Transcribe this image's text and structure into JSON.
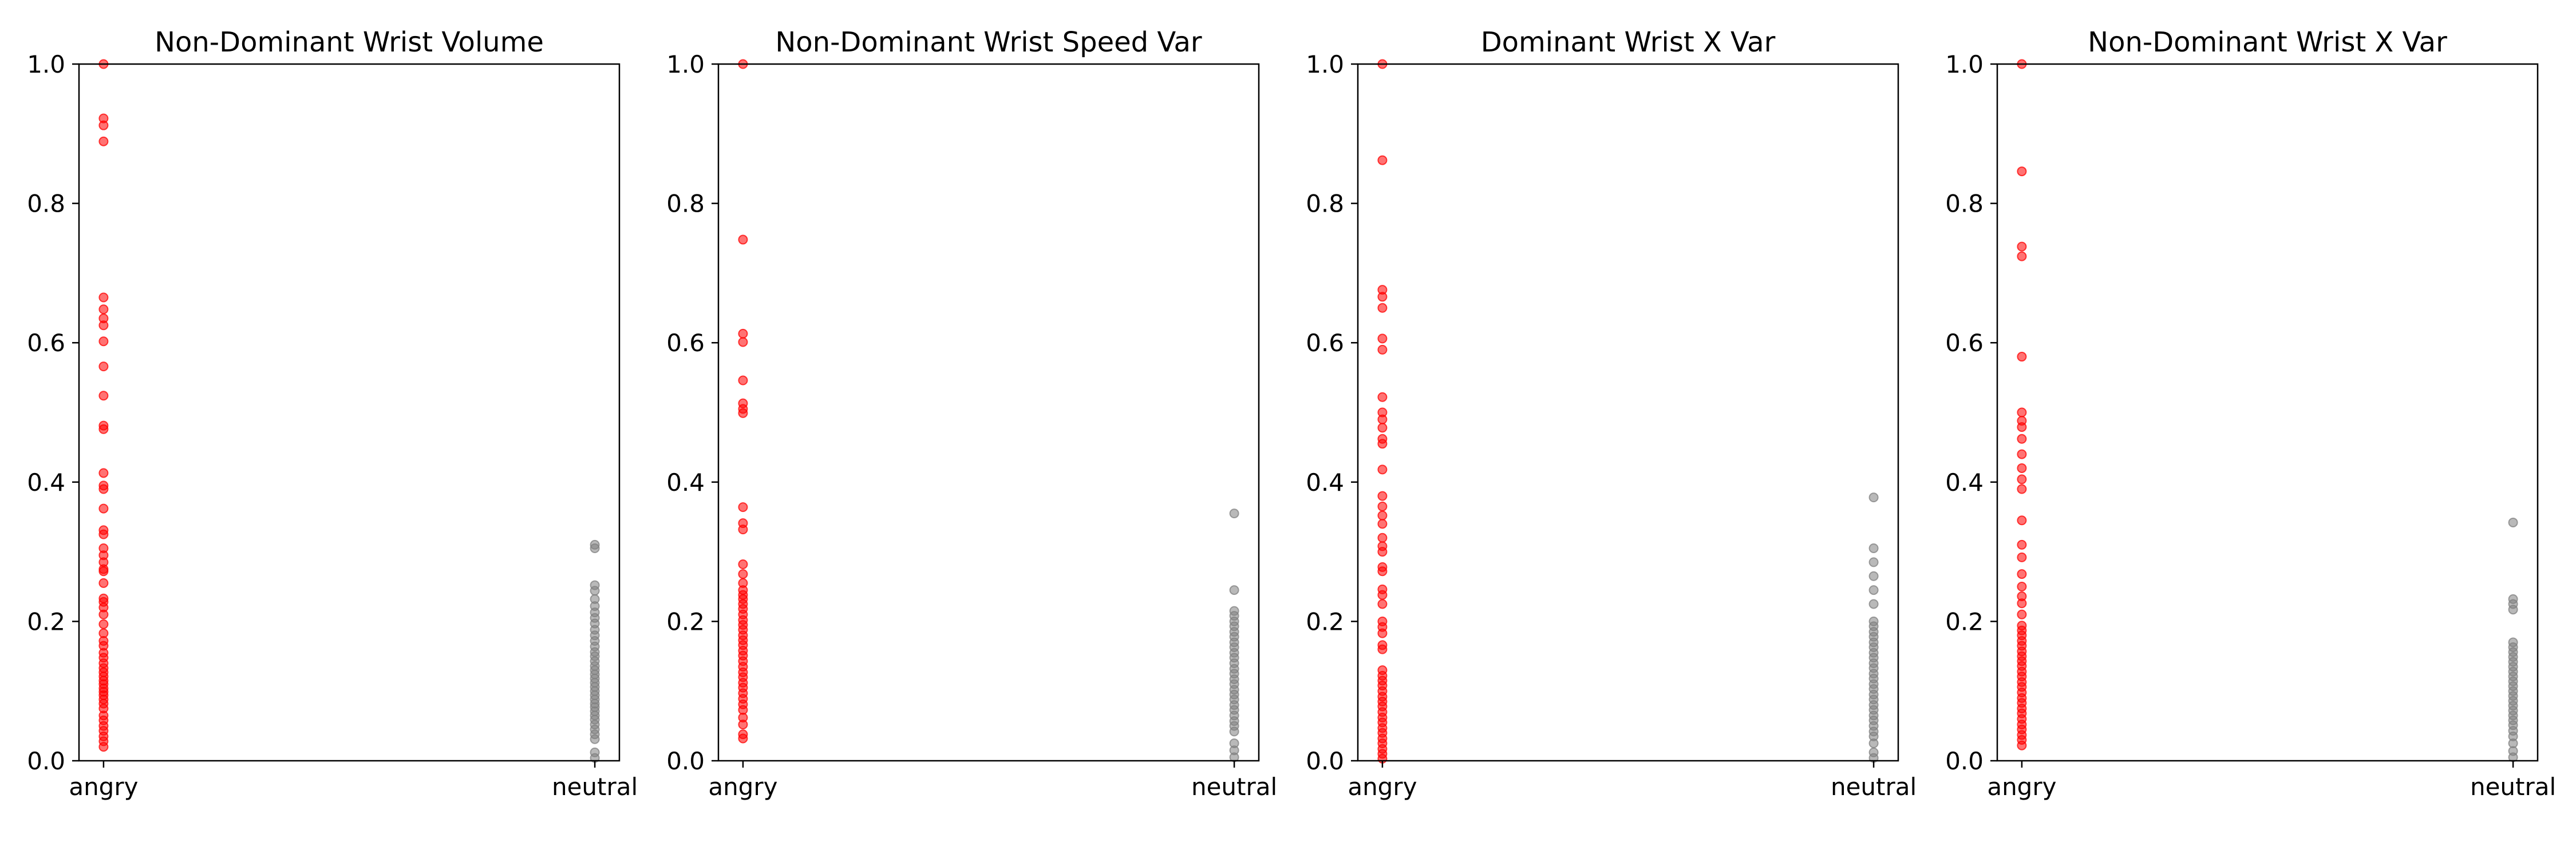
{
  "chart_data": [
    {
      "type": "scatter",
      "title": "Non-Dominant Wrist Volume",
      "categories": [
        "angry",
        "neutral"
      ],
      "ylim": [
        0,
        1
      ],
      "yticks": [
        0.0,
        0.2,
        0.4,
        0.6,
        0.8,
        1.0
      ],
      "ytick_labels": [
        "0.0",
        "0.2",
        "0.4",
        "0.6",
        "0.8",
        "1.0"
      ],
      "grid": false,
      "series": [
        {
          "category": "angry",
          "color": "#ff0000",
          "values": [
            1.0,
            0.922,
            0.912,
            0.889,
            0.665,
            0.648,
            0.635,
            0.625,
            0.602,
            0.566,
            0.524,
            0.481,
            0.476,
            0.413,
            0.395,
            0.39,
            0.362,
            0.331,
            0.325,
            0.305,
            0.295,
            0.285,
            0.275,
            0.272,
            0.255,
            0.233,
            0.228,
            0.22,
            0.21,
            0.196,
            0.183,
            0.172,
            0.165,
            0.155,
            0.148,
            0.14,
            0.133,
            0.127,
            0.121,
            0.115,
            0.11,
            0.104,
            0.099,
            0.094,
            0.088,
            0.082,
            0.075,
            0.065,
            0.058,
            0.05,
            0.043,
            0.035,
            0.028,
            0.02
          ]
        },
        {
          "category": "neutral",
          "color": "#808080",
          "values": [
            0.31,
            0.305,
            0.252,
            0.244,
            0.232,
            0.222,
            0.213,
            0.205,
            0.197,
            0.188,
            0.18,
            0.172,
            0.164,
            0.156,
            0.15,
            0.143,
            0.136,
            0.13,
            0.124,
            0.118,
            0.112,
            0.106,
            0.1,
            0.094,
            0.088,
            0.082,
            0.077,
            0.071,
            0.065,
            0.059,
            0.052,
            0.045,
            0.038,
            0.031,
            0.012,
            0.004
          ]
        }
      ]
    },
    {
      "type": "scatter",
      "title": "Non-Dominant Wrist Speed Var",
      "categories": [
        "angry",
        "neutral"
      ],
      "ylim": [
        0,
        1
      ],
      "yticks": [
        0.0,
        0.2,
        0.4,
        0.6,
        0.8,
        1.0
      ],
      "ytick_labels": [
        "0.0",
        "0.2",
        "0.4",
        "0.6",
        "0.8",
        "1.0"
      ],
      "grid": false,
      "series": [
        {
          "category": "angry",
          "color": "#ff0000",
          "values": [
            1.0,
            0.748,
            0.613,
            0.601,
            0.546,
            0.513,
            0.505,
            0.499,
            0.364,
            0.341,
            0.332,
            0.282,
            0.268,
            0.255,
            0.245,
            0.238,
            0.232,
            0.225,
            0.218,
            0.21,
            0.202,
            0.195,
            0.188,
            0.18,
            0.173,
            0.166,
            0.158,
            0.151,
            0.143,
            0.135,
            0.127,
            0.12,
            0.112,
            0.105,
            0.097,
            0.089,
            0.081,
            0.073,
            0.062,
            0.052,
            0.038,
            0.032
          ]
        },
        {
          "category": "neutral",
          "color": "#808080",
          "values": [
            0.355,
            0.245,
            0.215,
            0.208,
            0.2,
            0.193,
            0.185,
            0.178,
            0.17,
            0.163,
            0.155,
            0.148,
            0.14,
            0.132,
            0.125,
            0.117,
            0.11,
            0.102,
            0.095,
            0.088,
            0.08,
            0.073,
            0.065,
            0.057,
            0.05,
            0.042,
            0.025,
            0.015,
            0.005
          ]
        }
      ]
    },
    {
      "type": "scatter",
      "title": "Dominant Wrist X Var",
      "categories": [
        "angry",
        "neutral"
      ],
      "ylim": [
        0,
        1
      ],
      "yticks": [
        0.0,
        0.2,
        0.4,
        0.6,
        0.8,
        1.0
      ],
      "ytick_labels": [
        "0.0",
        "0.2",
        "0.4",
        "0.6",
        "0.8",
        "1.0"
      ],
      "grid": false,
      "series": [
        {
          "category": "angry",
          "color": "#ff0000",
          "values": [
            1.0,
            0.862,
            0.676,
            0.666,
            0.65,
            0.606,
            0.59,
            0.522,
            0.5,
            0.49,
            0.478,
            0.462,
            0.455,
            0.418,
            0.38,
            0.365,
            0.352,
            0.34,
            0.32,
            0.308,
            0.3,
            0.278,
            0.272,
            0.246,
            0.238,
            0.225,
            0.2,
            0.192,
            0.183,
            0.166,
            0.16,
            0.13,
            0.122,
            0.115,
            0.108,
            0.1,
            0.092,
            0.085,
            0.078,
            0.07,
            0.062,
            0.055,
            0.047,
            0.04,
            0.032,
            0.025,
            0.017,
            0.01,
            0.003
          ]
        },
        {
          "category": "neutral",
          "color": "#808080",
          "values": [
            0.378,
            0.305,
            0.285,
            0.265,
            0.245,
            0.225,
            0.2,
            0.193,
            0.185,
            0.178,
            0.17,
            0.163,
            0.155,
            0.148,
            0.14,
            0.133,
            0.125,
            0.118,
            0.11,
            0.103,
            0.095,
            0.088,
            0.08,
            0.073,
            0.065,
            0.058,
            0.05,
            0.042,
            0.035,
            0.025,
            0.012,
            0.004
          ]
        }
      ]
    },
    {
      "type": "scatter",
      "title": "Non-Dominant Wrist X Var",
      "categories": [
        "angry",
        "neutral"
      ],
      "ylim": [
        0,
        1
      ],
      "yticks": [
        0.0,
        0.2,
        0.4,
        0.6,
        0.8,
        1.0
      ],
      "ytick_labels": [
        "0.0",
        "0.2",
        "0.4",
        "0.6",
        "0.8",
        "1.0"
      ],
      "grid": false,
      "series": [
        {
          "category": "angry",
          "color": "#ff0000",
          "values": [
            1.0,
            0.846,
            0.738,
            0.724,
            0.58,
            0.5,
            0.488,
            0.479,
            0.462,
            0.44,
            0.42,
            0.404,
            0.39,
            0.345,
            0.31,
            0.292,
            0.268,
            0.25,
            0.236,
            0.226,
            0.21,
            0.194,
            0.187,
            0.18,
            0.172,
            0.165,
            0.157,
            0.15,
            0.143,
            0.136,
            0.128,
            0.121,
            0.113,
            0.106,
            0.098,
            0.09,
            0.083,
            0.075,
            0.068,
            0.06,
            0.052,
            0.045,
            0.037,
            0.03,
            0.022
          ]
        },
        {
          "category": "neutral",
          "color": "#808080",
          "values": [
            0.342,
            0.232,
            0.225,
            0.217,
            0.17,
            0.163,
            0.156,
            0.149,
            0.142,
            0.135,
            0.128,
            0.121,
            0.114,
            0.107,
            0.1,
            0.093,
            0.086,
            0.079,
            0.072,
            0.065,
            0.058,
            0.051,
            0.043,
            0.035,
            0.025,
            0.014,
            0.005
          ]
        }
      ]
    }
  ]
}
